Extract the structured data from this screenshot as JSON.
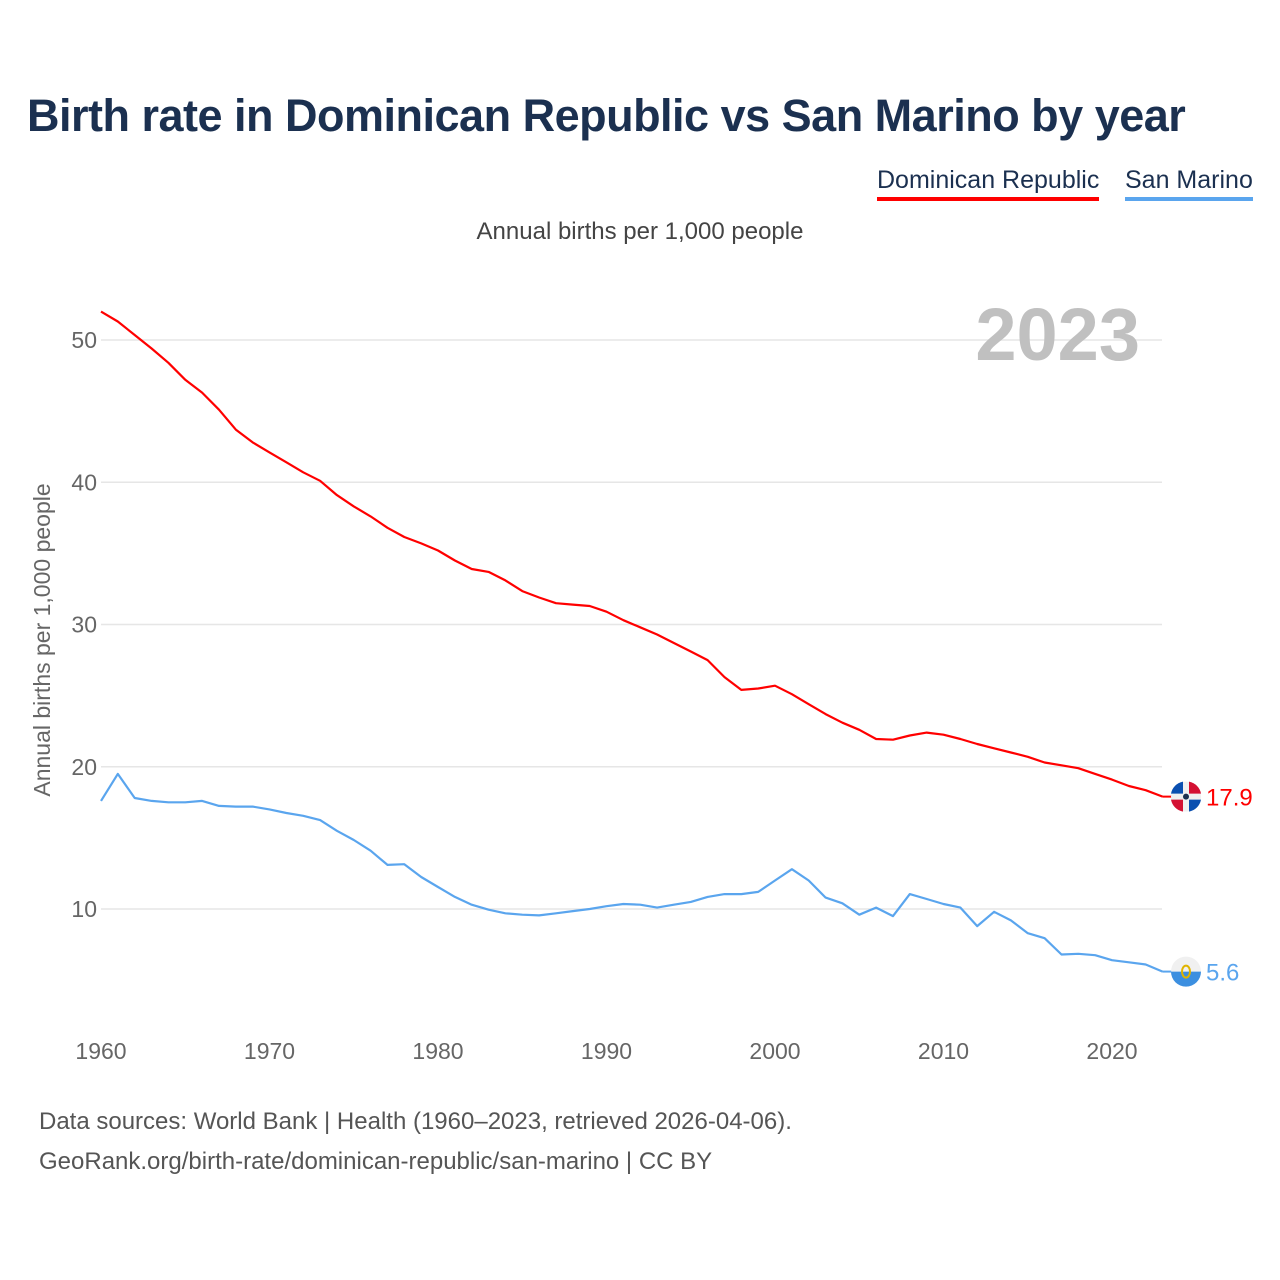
{
  "title": "Birth rate in Dominican Republic vs San Marino by year",
  "subtitle": "Annual births per 1,000 people",
  "year_label": "2023",
  "footer": {
    "line1": "Data sources: World Bank | Health (1960–2023, retrieved 2026-04-06).",
    "line2": "GeoRank.org/birth-rate/dominican-republic/san-marino | CC BY"
  },
  "chart_data": {
    "type": "line",
    "title": "Birth rate in Dominican Republic vs San Marino by year",
    "xlabel": "",
    "ylabel": "Annual births per 1,000 people",
    "xlim": [
      1960,
      2023
    ],
    "ylim": [
      10,
      50
    ],
    "grid": true,
    "legend": "top-right",
    "x_ticks": [
      "1960",
      "1970",
      "1980",
      "1990",
      "2000",
      "2010",
      "2020"
    ],
    "y_ticks": [
      "10",
      "20",
      "30",
      "40",
      "50"
    ],
    "x": [
      1960,
      1961,
      1962,
      1963,
      1964,
      1965,
      1966,
      1967,
      1968,
      1969,
      1970,
      1971,
      1972,
      1973,
      1974,
      1975,
      1976,
      1977,
      1978,
      1979,
      1980,
      1981,
      1982,
      1983,
      1984,
      1985,
      1986,
      1987,
      1988,
      1989,
      1990,
      1991,
      1992,
      1993,
      1994,
      1995,
      1996,
      1997,
      1998,
      1999,
      2000,
      2001,
      2002,
      2003,
      2004,
      2005,
      2006,
      2007,
      2008,
      2009,
      2010,
      2011,
      2012,
      2013,
      2014,
      2015,
      2016,
      2017,
      2018,
      2019,
      2020,
      2021,
      2022,
      2023
    ],
    "series": [
      {
        "name": "Dominican Republic",
        "color": "#ff0000",
        "end_label": "17.9",
        "flag": "dominican-republic-flag-icon",
        "values": [
          52.0,
          51.3,
          50.35,
          49.4,
          48.4,
          47.2,
          46.3,
          45.1,
          43.7,
          42.8,
          42.1,
          41.4,
          40.7,
          40.1,
          39.1,
          38.3,
          37.6,
          36.8,
          36.15,
          35.7,
          35.2,
          34.5,
          33.9,
          33.7,
          33.1,
          32.35,
          31.9,
          31.5,
          31.4,
          31.3,
          30.9,
          30.3,
          29.8,
          29.3,
          28.7,
          28.1,
          27.5,
          26.3,
          25.4,
          25.5,
          25.7,
          25.1,
          24.4,
          23.7,
          23.1,
          22.6,
          21.95,
          21.9,
          22.2,
          22.4,
          22.25,
          21.95,
          21.6,
          21.3,
          21.0,
          20.7,
          20.3,
          20.1,
          19.9,
          19.5,
          19.1,
          18.65,
          18.35,
          17.9
        ]
      },
      {
        "name": "San Marino",
        "color": "#5aa5ee",
        "end_label": "5.6",
        "flag": "san-marino-flag-icon",
        "values": [
          17.6,
          19.5,
          17.8,
          17.6,
          17.5,
          17.5,
          17.6,
          17.25,
          17.2,
          17.2,
          17.0,
          16.75,
          16.55,
          16.25,
          15.5,
          14.85,
          14.1,
          13.1,
          13.15,
          12.25,
          11.55,
          10.85,
          10.3,
          9.95,
          9.7,
          9.6,
          9.55,
          9.7,
          9.85,
          10.0,
          10.2,
          10.35,
          10.3,
          10.1,
          10.3,
          10.5,
          10.85,
          11.05,
          11.05,
          11.2,
          12.0,
          12.8,
          12.0,
          10.8,
          10.4,
          9.6,
          10.1,
          9.5,
          11.05,
          10.7,
          10.35,
          10.1,
          8.8,
          9.8,
          9.2,
          8.3,
          7.95,
          6.8,
          6.85,
          6.75,
          6.4,
          6.25,
          6.1,
          5.6
        ]
      }
    ]
  }
}
